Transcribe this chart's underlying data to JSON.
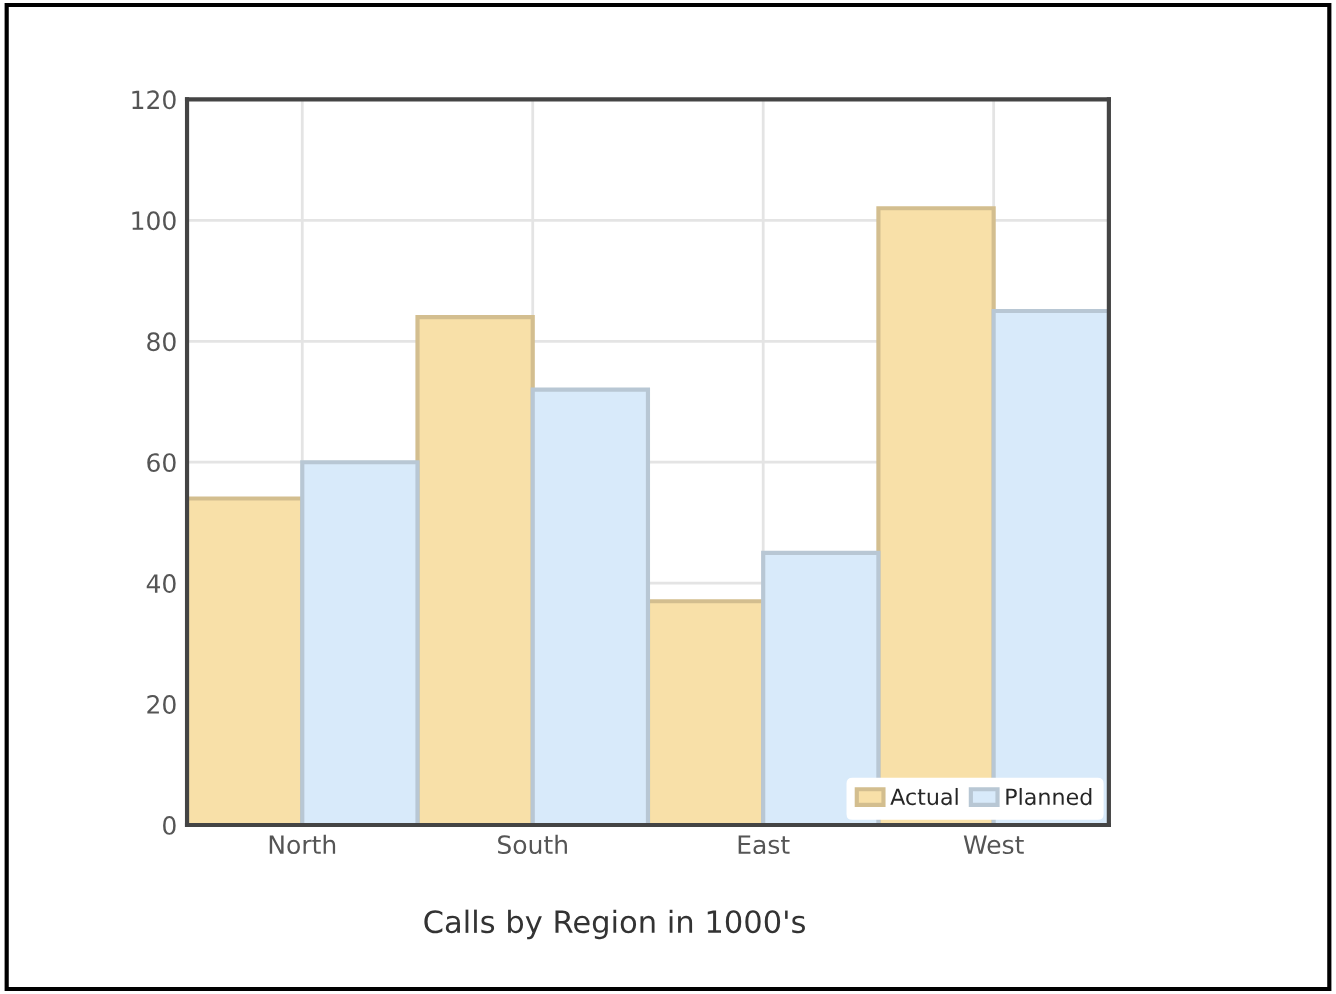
{
  "chart_data": {
    "type": "bar",
    "title": "Calls by Region in 1000's",
    "categories": [
      "North",
      "South",
      "East",
      "West"
    ],
    "series": [
      {
        "name": "Actual",
        "color": "#f8e0a8",
        "values": [
          54,
          84,
          37,
          102
        ]
      },
      {
        "name": "Planned",
        "color": "#d8eafa",
        "values": [
          60,
          72,
          45,
          85
        ]
      }
    ],
    "ylim": [
      0,
      120
    ],
    "yticks": [
      0,
      20,
      40,
      60,
      80,
      100,
      120
    ],
    "grid": true,
    "legend": "bottom right"
  }
}
